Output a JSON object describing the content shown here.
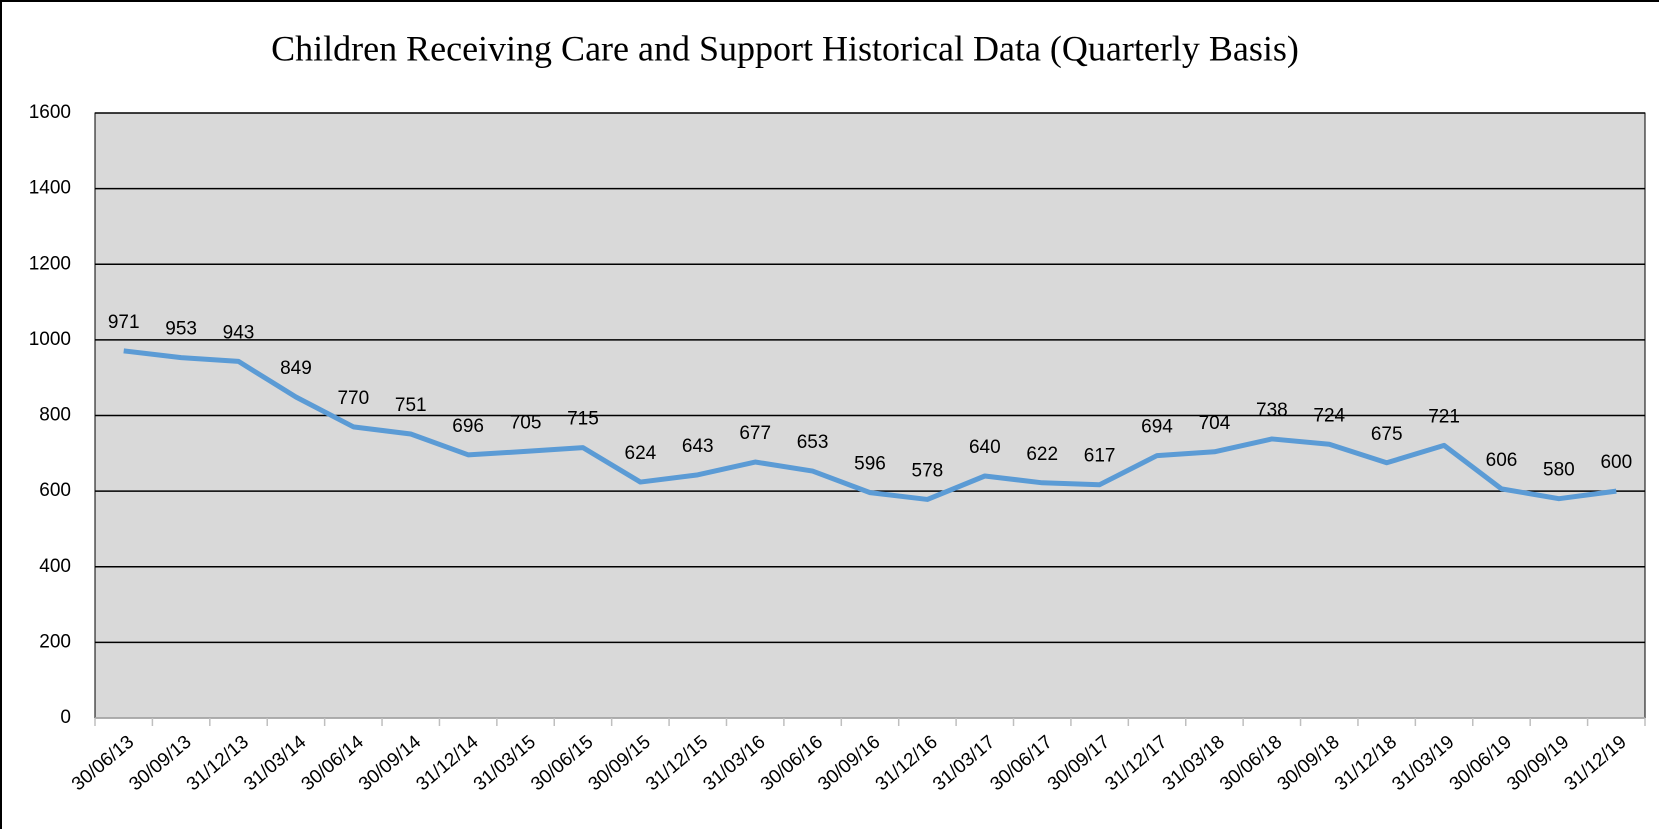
{
  "chart_data": {
    "type": "line",
    "title": "Children Receiving Care and Support Historical Data (Quarterly Basis)",
    "categories": [
      "30/06/13",
      "30/09/13",
      "31/12/13",
      "31/03/14",
      "30/06/14",
      "30/09/14",
      "31/12/14",
      "31/03/15",
      "30/06/15",
      "30/09/15",
      "31/12/15",
      "31/03/16",
      "30/06/16",
      "30/09/16",
      "31/12/16",
      "31/03/17",
      "30/06/17",
      "30/09/17",
      "31/12/17",
      "31/03/18",
      "30/06/18",
      "30/09/18",
      "31/12/18",
      "31/03/19",
      "30/06/19",
      "30/09/19",
      "31/12/19"
    ],
    "values": [
      971,
      953,
      943,
      849,
      770,
      751,
      696,
      705,
      715,
      624,
      643,
      677,
      653,
      596,
      578,
      640,
      622,
      617,
      694,
      704,
      738,
      724,
      675,
      721,
      606,
      580,
      600
    ],
    "color": "#5b9bd5",
    "ylim": [
      0,
      1600
    ],
    "yticks": [
      0,
      200,
      400,
      600,
      800,
      1000,
      1200,
      1400,
      1600
    ],
    "grid": true
  }
}
